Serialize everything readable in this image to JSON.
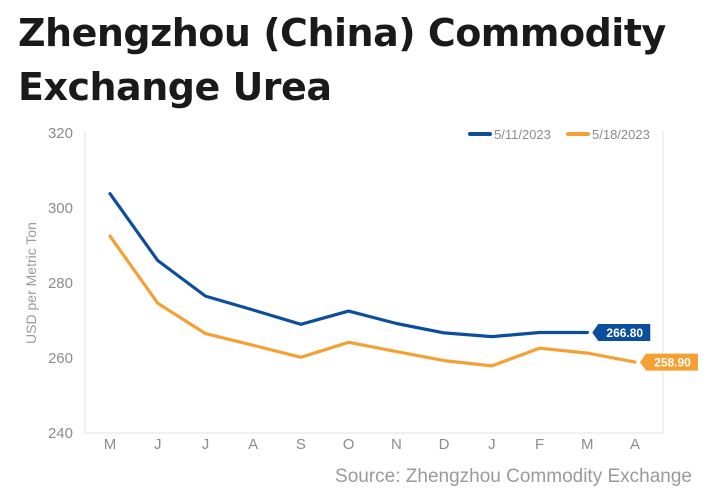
{
  "title": "Zhengzhou (China) Commodity Exchange Urea",
  "source": "Source: Zhengzhou Commodity Exchange",
  "chart_data": {
    "type": "line",
    "title": "Zhengzhou (China) Commodity Exchange Urea",
    "xlabel": "",
    "ylabel": "USD per Metric Ton",
    "categories": [
      "M",
      "J",
      "J",
      "A",
      "S",
      "O",
      "N",
      "D",
      "J",
      "F",
      "M",
      "A"
    ],
    "ylim": [
      240,
      320
    ],
    "yticks": [
      240,
      260,
      280,
      300,
      320
    ],
    "grid": false,
    "legend_position": "top-right",
    "series": [
      {
        "name": "5/11/2023",
        "color": "#0b4f9c",
        "values": [
          303.8,
          286.0,
          276.5,
          272.8,
          269.0,
          272.5,
          269.2,
          266.7,
          265.7,
          266.8,
          266.8,
          null
        ],
        "end_label": "266.80"
      },
      {
        "name": "5/18/2023",
        "color": "#f5a033",
        "values": [
          292.5,
          274.6,
          266.5,
          263.4,
          260.2,
          264.2,
          261.7,
          259.3,
          257.9,
          262.6,
          261.3,
          258.9
        ],
        "end_label": "258.90"
      }
    ]
  }
}
